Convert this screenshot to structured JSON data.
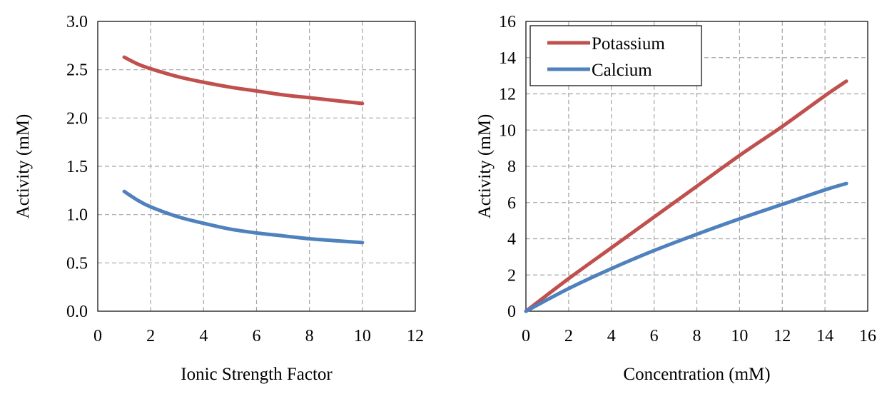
{
  "colors": {
    "potassium": "#c0504d",
    "calcium": "#4f81bd",
    "grid": "#a6a6a6",
    "axis": "#000000"
  },
  "chart_data": [
    {
      "type": "line",
      "title": "",
      "xlabel": "Ionic Strength Factor",
      "ylabel": "Activity (mM)",
      "xlim": [
        0,
        12
      ],
      "ylim": [
        0,
        3
      ],
      "xticks": [
        0,
        2,
        4,
        6,
        8,
        10,
        12
      ],
      "yticks": [
        0,
        0.5,
        1,
        1.5,
        2,
        2.5,
        3
      ],
      "xtick_labels": [
        "0",
        "2",
        "4",
        "6",
        "8",
        "10",
        "12"
      ],
      "ytick_labels": [
        "0.0",
        "0.5",
        "1.0",
        "1.5",
        "2.0",
        "2.5",
        "3.0"
      ],
      "grid": true,
      "legend": null,
      "series": [
        {
          "color_key": "potassium",
          "x": [
            1,
            1.5,
            2,
            3,
            4,
            5,
            6,
            7,
            8,
            9,
            10
          ],
          "y": [
            2.63,
            2.56,
            2.51,
            2.43,
            2.37,
            2.32,
            2.28,
            2.24,
            2.21,
            2.18,
            2.15
          ]
        },
        {
          "color_key": "calcium",
          "x": [
            1,
            1.5,
            2,
            3,
            4,
            5,
            6,
            7,
            8,
            9,
            10
          ],
          "y": [
            1.24,
            1.15,
            1.08,
            0.98,
            0.91,
            0.85,
            0.81,
            0.78,
            0.75,
            0.73,
            0.71
          ]
        }
      ]
    },
    {
      "type": "line",
      "title": "",
      "xlabel": "Concentration (mM)",
      "ylabel": "Activity (mM)",
      "xlim": [
        0,
        16
      ],
      "ylim": [
        0,
        16
      ],
      "xticks": [
        0,
        2,
        4,
        6,
        8,
        10,
        12,
        14,
        16
      ],
      "yticks": [
        0,
        2,
        4,
        6,
        8,
        10,
        12,
        14,
        16
      ],
      "xtick_labels": [
        "0",
        "2",
        "4",
        "6",
        "8",
        "10",
        "12",
        "14",
        "16"
      ],
      "ytick_labels": [
        "0",
        "2",
        "4",
        "6",
        "8",
        "10",
        "12",
        "14",
        "16"
      ],
      "grid": true,
      "legend": "top-left",
      "series": [
        {
          "name": "Potassium",
          "color_key": "potassium",
          "x": [
            0,
            2,
            4,
            6,
            8,
            10,
            12,
            14,
            15
          ],
          "y": [
            0,
            1.8,
            3.5,
            5.2,
            6.9,
            8.6,
            10.2,
            11.9,
            12.7
          ]
        },
        {
          "name": "Calcium",
          "color_key": "calcium",
          "x": [
            0,
            2,
            4,
            6,
            8,
            10,
            12,
            14,
            15
          ],
          "y": [
            0,
            1.25,
            2.35,
            3.35,
            4.25,
            5.1,
            5.9,
            6.7,
            7.05
          ]
        }
      ]
    }
  ]
}
